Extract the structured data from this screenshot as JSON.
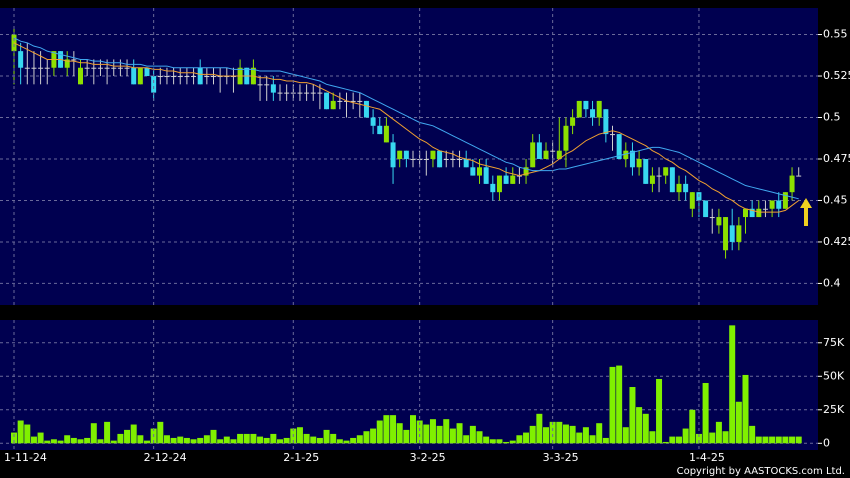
{
  "chart_data": [
    {
      "type": "candlestick",
      "ylim": [
        0.387,
        0.566
      ],
      "yticks": [
        0.55,
        0.525,
        0.5,
        0.475,
        0.45,
        0.425,
        0.4
      ],
      "grid": true,
      "up_color": "#8ee000",
      "down_color": "#38d8f0",
      "flat_color": "#d0d0d0",
      "ohlc": [
        [
          0.54,
          0.555,
          0.52,
          0.55
        ],
        [
          0.54,
          0.545,
          0.52,
          0.53
        ],
        [
          0.53,
          0.545,
          0.52,
          0.53
        ],
        [
          0.53,
          0.54,
          0.52,
          0.53
        ],
        [
          0.53,
          0.54,
          0.52,
          0.53
        ],
        [
          0.53,
          0.535,
          0.52,
          0.53
        ],
        [
          0.53,
          0.54,
          0.525,
          0.54
        ],
        [
          0.54,
          0.54,
          0.53,
          0.53
        ],
        [
          0.53,
          0.54,
          0.525,
          0.535
        ],
        [
          0.535,
          0.54,
          0.525,
          0.535
        ],
        [
          0.52,
          0.535,
          0.52,
          0.53
        ],
        [
          0.53,
          0.535,
          0.525,
          0.53
        ],
        [
          0.53,
          0.535,
          0.52,
          0.53
        ],
        [
          0.53,
          0.535,
          0.525,
          0.53
        ],
        [
          0.53,
          0.535,
          0.52,
          0.53
        ],
        [
          0.53,
          0.535,
          0.525,
          0.53
        ],
        [
          0.53,
          0.535,
          0.525,
          0.53
        ],
        [
          0.53,
          0.535,
          0.525,
          0.53
        ],
        [
          0.53,
          0.535,
          0.52,
          0.52
        ],
        [
          0.52,
          0.53,
          0.52,
          0.53
        ],
        [
          0.53,
          0.53,
          0.525,
          0.525
        ],
        [
          0.525,
          0.53,
          0.51,
          0.515
        ],
        [
          0.525,
          0.53,
          0.52,
          0.525
        ],
        [
          0.525,
          0.53,
          0.52,
          0.525
        ],
        [
          0.525,
          0.53,
          0.52,
          0.525
        ],
        [
          0.525,
          0.53,
          0.52,
          0.525
        ],
        [
          0.525,
          0.53,
          0.52,
          0.525
        ],
        [
          0.525,
          0.53,
          0.52,
          0.525
        ],
        [
          0.53,
          0.535,
          0.52,
          0.52
        ],
        [
          0.525,
          0.53,
          0.52,
          0.525
        ],
        [
          0.525,
          0.53,
          0.52,
          0.525
        ],
        [
          0.525,
          0.53,
          0.515,
          0.525
        ],
        [
          0.525,
          0.53,
          0.52,
          0.525
        ],
        [
          0.525,
          0.53,
          0.515,
          0.525
        ],
        [
          0.52,
          0.535,
          0.52,
          0.53
        ],
        [
          0.53,
          0.53,
          0.52,
          0.52
        ],
        [
          0.52,
          0.535,
          0.52,
          0.53
        ],
        [
          0.52,
          0.525,
          0.51,
          0.52
        ],
        [
          0.52,
          0.525,
          0.51,
          0.52
        ],
        [
          0.52,
          0.525,
          0.51,
          0.515
        ],
        [
          0.515,
          0.52,
          0.51,
          0.515
        ],
        [
          0.515,
          0.52,
          0.51,
          0.515
        ],
        [
          0.515,
          0.52,
          0.51,
          0.515
        ],
        [
          0.515,
          0.52,
          0.51,
          0.515
        ],
        [
          0.515,
          0.52,
          0.51,
          0.515
        ],
        [
          0.515,
          0.52,
          0.51,
          0.515
        ],
        [
          0.515,
          0.52,
          0.505,
          0.515
        ],
        [
          0.515,
          0.515,
          0.505,
          0.505
        ],
        [
          0.505,
          0.515,
          0.505,
          0.51
        ],
        [
          0.51,
          0.515,
          0.505,
          0.51
        ],
        [
          0.51,
          0.515,
          0.5,
          0.51
        ],
        [
          0.51,
          0.515,
          0.505,
          0.51
        ],
        [
          0.51,
          0.515,
          0.5,
          0.51
        ],
        [
          0.51,
          0.51,
          0.5,
          0.5
        ],
        [
          0.5,
          0.505,
          0.49,
          0.495
        ],
        [
          0.495,
          0.5,
          0.49,
          0.49
        ],
        [
          0.485,
          0.5,
          0.485,
          0.495
        ],
        [
          0.485,
          0.49,
          0.46,
          0.47
        ],
        [
          0.475,
          0.48,
          0.47,
          0.48
        ],
        [
          0.48,
          0.48,
          0.47,
          0.475
        ],
        [
          0.475,
          0.48,
          0.47,
          0.475
        ],
        [
          0.475,
          0.48,
          0.47,
          0.475
        ],
        [
          0.475,
          0.48,
          0.465,
          0.475
        ],
        [
          0.475,
          0.48,
          0.47,
          0.48
        ],
        [
          0.48,
          0.48,
          0.47,
          0.47
        ],
        [
          0.475,
          0.48,
          0.47,
          0.475
        ],
        [
          0.475,
          0.48,
          0.47,
          0.475
        ],
        [
          0.475,
          0.48,
          0.47,
          0.475
        ],
        [
          0.475,
          0.48,
          0.47,
          0.47
        ],
        [
          0.47,
          0.475,
          0.465,
          0.465
        ],
        [
          0.465,
          0.475,
          0.46,
          0.47
        ],
        [
          0.47,
          0.475,
          0.46,
          0.46
        ],
        [
          0.46,
          0.465,
          0.45,
          0.455
        ],
        [
          0.455,
          0.465,
          0.45,
          0.465
        ],
        [
          0.465,
          0.47,
          0.46,
          0.46
        ],
        [
          0.46,
          0.47,
          0.46,
          0.465
        ],
        [
          0.465,
          0.47,
          0.46,
          0.465
        ],
        [
          0.465,
          0.475,
          0.46,
          0.47
        ],
        [
          0.47,
          0.49,
          0.47,
          0.485
        ],
        [
          0.485,
          0.49,
          0.475,
          0.475
        ],
        [
          0.475,
          0.485,
          0.475,
          0.48
        ],
        [
          0.48,
          0.485,
          0.47,
          0.48
        ],
        [
          0.475,
          0.5,
          0.475,
          0.48
        ],
        [
          0.48,
          0.5,
          0.47,
          0.495
        ],
        [
          0.495,
          0.505,
          0.49,
          0.5
        ],
        [
          0.5,
          0.51,
          0.5,
          0.51
        ],
        [
          0.51,
          0.51,
          0.5,
          0.505
        ],
        [
          0.505,
          0.51,
          0.495,
          0.5
        ],
        [
          0.5,
          0.51,
          0.495,
          0.51
        ],
        [
          0.505,
          0.505,
          0.485,
          0.49
        ],
        [
          0.49,
          0.495,
          0.48,
          0.49
        ],
        [
          0.49,
          0.49,
          0.475,
          0.475
        ],
        [
          0.475,
          0.485,
          0.47,
          0.48
        ],
        [
          0.48,
          0.485,
          0.465,
          0.47
        ],
        [
          0.47,
          0.48,
          0.465,
          0.475
        ],
        [
          0.475,
          0.475,
          0.46,
          0.46
        ],
        [
          0.46,
          0.47,
          0.455,
          0.465
        ],
        [
          0.465,
          0.47,
          0.455,
          0.465
        ],
        [
          0.465,
          0.47,
          0.46,
          0.47
        ],
        [
          0.47,
          0.47,
          0.455,
          0.455
        ],
        [
          0.455,
          0.465,
          0.45,
          0.46
        ],
        [
          0.46,
          0.465,
          0.45,
          0.455
        ],
        [
          0.445,
          0.455,
          0.44,
          0.455
        ],
        [
          0.455,
          0.455,
          0.44,
          0.45
        ],
        [
          0.45,
          0.45,
          0.44,
          0.44
        ],
        [
          0.44,
          0.445,
          0.43,
          0.44
        ],
        [
          0.435,
          0.445,
          0.43,
          0.44
        ],
        [
          0.42,
          0.44,
          0.415,
          0.44
        ],
        [
          0.435,
          0.445,
          0.42,
          0.425
        ],
        [
          0.425,
          0.44,
          0.42,
          0.435
        ],
        [
          0.44,
          0.445,
          0.43,
          0.445
        ],
        [
          0.445,
          0.45,
          0.44,
          0.44
        ],
        [
          0.44,
          0.45,
          0.44,
          0.445
        ],
        [
          0.445,
          0.45,
          0.44,
          0.445
        ],
        [
          0.445,
          0.45,
          0.44,
          0.45
        ],
        [
          0.45,
          0.455,
          0.44,
          0.445
        ],
        [
          0.445,
          0.455,
          0.445,
          0.455
        ],
        [
          0.455,
          0.47,
          0.45,
          0.465
        ],
        [
          0.465,
          0.47,
          0.465,
          0.465
        ]
      ],
      "series": [
        {
          "color": "#f0a030",
          "values": [
            0.545,
            0.543,
            0.541,
            0.539,
            0.537,
            0.535,
            0.535,
            0.535,
            0.534,
            0.534,
            0.533,
            0.533,
            0.532,
            0.532,
            0.532,
            0.531,
            0.531,
            0.531,
            0.53,
            0.53,
            0.53,
            0.529,
            0.529,
            0.528,
            0.528,
            0.527,
            0.527,
            0.527,
            0.526,
            0.526,
            0.526,
            0.525,
            0.525,
            0.525,
            0.525,
            0.525,
            0.525,
            0.524,
            0.524,
            0.523,
            0.523,
            0.522,
            0.522,
            0.521,
            0.521,
            0.52,
            0.518,
            0.516,
            0.514,
            0.512,
            0.51,
            0.509,
            0.508,
            0.507,
            0.506,
            0.505,
            0.502,
            0.499,
            0.496,
            0.493,
            0.49,
            0.487,
            0.485,
            0.482,
            0.48,
            0.479,
            0.478,
            0.476,
            0.475,
            0.474,
            0.472,
            0.471,
            0.47,
            0.469,
            0.467,
            0.466,
            0.465,
            0.466,
            0.467,
            0.468,
            0.47,
            0.472,
            0.475,
            0.478,
            0.48,
            0.483,
            0.486,
            0.488,
            0.49,
            0.491,
            0.492,
            0.491,
            0.489,
            0.487,
            0.485,
            0.483,
            0.48,
            0.478,
            0.475,
            0.473,
            0.47,
            0.468,
            0.465,
            0.462,
            0.46,
            0.457,
            0.455,
            0.452,
            0.45,
            0.447,
            0.445,
            0.444,
            0.443,
            0.443,
            0.443,
            0.443,
            0.444,
            0.447,
            0.45
          ]
        },
        {
          "color": "#40a8f0",
          "values": [
            0.548,
            0.546,
            0.545,
            0.543,
            0.542,
            0.54,
            0.539,
            0.538,
            0.537,
            0.536,
            0.535,
            0.535,
            0.534,
            0.534,
            0.533,
            0.533,
            0.533,
            0.532,
            0.532,
            0.532,
            0.531,
            0.531,
            0.531,
            0.531,
            0.53,
            0.53,
            0.53,
            0.53,
            0.53,
            0.53,
            0.53,
            0.53,
            0.53,
            0.529,
            0.529,
            0.529,
            0.529,
            0.528,
            0.528,
            0.528,
            0.528,
            0.527,
            0.526,
            0.525,
            0.524,
            0.523,
            0.522,
            0.52,
            0.519,
            0.518,
            0.517,
            0.516,
            0.515,
            0.513,
            0.511,
            0.509,
            0.507,
            0.505,
            0.503,
            0.501,
            0.499,
            0.497,
            0.496,
            0.495,
            0.493,
            0.491,
            0.489,
            0.487,
            0.485,
            0.483,
            0.481,
            0.479,
            0.477,
            0.475,
            0.473,
            0.472,
            0.47,
            0.469,
            0.468,
            0.468,
            0.468,
            0.468,
            0.469,
            0.469,
            0.47,
            0.471,
            0.472,
            0.473,
            0.474,
            0.475,
            0.476,
            0.477,
            0.478,
            0.479,
            0.48,
            0.481,
            0.482,
            0.482,
            0.481,
            0.48,
            0.479,
            0.477,
            0.475,
            0.473,
            0.471,
            0.469,
            0.467,
            0.465,
            0.463,
            0.461,
            0.459,
            0.458,
            0.457,
            0.456,
            0.455,
            0.454,
            0.453,
            0.452,
            0.451
          ]
        }
      ]
    },
    {
      "type": "bar",
      "ylim": [
        -5000,
        92000
      ],
      "yticks": [
        {
          "value": 75000,
          "label": "75K"
        },
        {
          "value": 50000,
          "label": "50K"
        },
        {
          "value": 25000,
          "label": "25K"
        },
        0
      ],
      "grid": true,
      "color": "#80f000",
      "categories": [
        "1-11-24",
        null,
        null,
        null,
        null,
        null,
        null,
        null,
        null,
        null,
        null,
        null,
        null,
        null,
        null,
        null,
        null,
        null,
        null,
        null,
        null,
        "2-12-24",
        null,
        null,
        null,
        null,
        null,
        null,
        null,
        null,
        null,
        null,
        null,
        null,
        null,
        null,
        null,
        null,
        null,
        null,
        null,
        null,
        "2-1-25",
        null,
        null,
        null,
        null,
        null,
        null,
        null,
        null,
        null,
        null,
        null,
        null,
        null,
        null,
        null,
        null,
        null,
        null,
        "3-2-25",
        null,
        null,
        null,
        null,
        null,
        null,
        null,
        null,
        null,
        null,
        null,
        null,
        null,
        null,
        null,
        null,
        null,
        null,
        null,
        "3-3-25",
        null,
        null,
        null,
        null,
        null,
        null,
        null,
        null,
        null,
        null,
        null,
        null,
        null,
        null,
        null,
        null,
        null,
        null,
        null,
        null,
        null,
        "1-4-25",
        null,
        null,
        null,
        null,
        null,
        null,
        null,
        null,
        null,
        null,
        null,
        null,
        null,
        null,
        null
      ],
      "values": [
        8000,
        17000,
        14000,
        5000,
        8000,
        2000,
        3000,
        2000,
        6000,
        4000,
        3000,
        4000,
        15000,
        3000,
        16000,
        2000,
        7000,
        10000,
        14000,
        6000,
        2000,
        11000,
        16000,
        6000,
        4000,
        5000,
        4000,
        3000,
        4000,
        6000,
        10000,
        3000,
        5000,
        3000,
        7000,
        7000,
        7000,
        5000,
        4000,
        7000,
        3000,
        4000,
        11000,
        12000,
        7000,
        5000,
        4000,
        10000,
        7000,
        3000,
        2000,
        4000,
        6000,
        9000,
        11000,
        17000,
        21000,
        21000,
        15000,
        10000,
        21000,
        17000,
        14000,
        18000,
        13000,
        18000,
        11000,
        15000,
        6000,
        13000,
        9000,
        5000,
        3000,
        3000,
        1000,
        2000,
        6000,
        8000,
        13000,
        22000,
        12000,
        16000,
        16000,
        14000,
        13000,
        8000,
        12000,
        6000,
        15000,
        4000,
        57000,
        58000,
        12000,
        42000,
        27000,
        22000,
        9000,
        48000,
        1000,
        5000,
        5000,
        11000,
        25000,
        7000,
        45000,
        8000,
        16000,
        9000,
        88000,
        31000,
        51000,
        13000,
        5000,
        5000,
        5000,
        5000,
        5000,
        5000,
        5000
      ]
    }
  ],
  "copyright": "Copyright by AASTOCKS.com Ltd."
}
